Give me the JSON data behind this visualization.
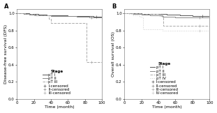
{
  "panel_a": {
    "title": "A",
    "ylabel": "Disease-free survival (DFS)",
    "xlabel": "Time (month)",
    "xlim": [
      0,
      100
    ],
    "ylim": [
      0,
      1.05
    ],
    "yticks": [
      0,
      0.2,
      0.4,
      0.6,
      0.8,
      1.0
    ],
    "xticks": [
      0,
      20,
      40,
      60,
      80,
      100
    ],
    "curves": [
      {
        "label": "pT I",
        "color": "#555555",
        "linestyle": "solid",
        "linewidth": 0.7,
        "x": [
          0,
          15,
          25,
          35,
          50,
          60,
          75,
          90,
          100
        ],
        "y": [
          1.0,
          0.99,
          0.985,
          0.98,
          0.975,
          0.97,
          0.965,
          0.96,
          0.96
        ]
      },
      {
        "label": "pT II",
        "color": "#888888",
        "linestyle": "solid",
        "linewidth": 0.7,
        "x": [
          0,
          8,
          15,
          22,
          30,
          40,
          55,
          70,
          85,
          100
        ],
        "y": [
          1.0,
          0.99,
          0.985,
          0.98,
          0.975,
          0.97,
          0.965,
          0.96,
          0.955,
          0.955
        ]
      },
      {
        "label": "pT III",
        "color": "#aaaaaa",
        "linestyle": "dashed",
        "linewidth": 0.7,
        "x": [
          0,
          5,
          10,
          20,
          38,
          38,
          40,
          80,
          82,
          82,
          100
        ],
        "y": [
          1.0,
          1.0,
          0.99,
          0.975,
          0.935,
          0.935,
          0.89,
          0.89,
          0.89,
          0.43,
          0.43
        ]
      }
    ],
    "censored": [
      {
        "label": "I-censored",
        "color": "#555555",
        "x": [
          93
        ],
        "y": [
          0.962
        ]
      },
      {
        "label": "II-censored",
        "color": "#888888",
        "x": [
          88
        ],
        "y": [
          0.955
        ]
      },
      {
        "label": "III-censored",
        "color": "#aaaaaa",
        "x": [
          88
        ],
        "y": [
          0.43
        ]
      }
    ]
  },
  "panel_b": {
    "title": "B",
    "ylabel": "Overall survival (OS)",
    "xlabel": "Time (month)",
    "xlim": [
      0,
      100
    ],
    "ylim": [
      0,
      1.05
    ],
    "yticks": [
      0,
      0.2,
      0.4,
      0.6,
      0.8,
      1.0
    ],
    "xticks": [
      0,
      20,
      40,
      60,
      80,
      100
    ],
    "curves": [
      {
        "label": "pT I",
        "color": "#555555",
        "linestyle": "solid",
        "linewidth": 0.7,
        "x": [
          0,
          10,
          20,
          35,
          50,
          65,
          80,
          95,
          100
        ],
        "y": [
          1.0,
          1.0,
          0.995,
          0.99,
          0.985,
          0.975,
          0.97,
          0.965,
          0.965
        ]
      },
      {
        "label": "pT II",
        "color": "#888888",
        "linestyle": "solid",
        "linewidth": 0.7,
        "x": [
          0,
          5,
          10,
          20,
          30,
          42,
          45,
          45,
          60,
          75,
          90,
          100
        ],
        "y": [
          1.0,
          1.0,
          0.99,
          0.985,
          0.98,
          0.975,
          0.975,
          0.96,
          0.955,
          0.952,
          0.95,
          0.95
        ]
      },
      {
        "label": "pT III",
        "color": "#aaaaaa",
        "linestyle": "dashed",
        "linewidth": 0.7,
        "x": [
          0,
          5,
          10,
          20,
          42,
          46,
          46,
          60,
          75,
          90,
          100
        ],
        "y": [
          1.0,
          1.0,
          1.0,
          0.99,
          0.97,
          0.97,
          0.855,
          0.855,
          0.855,
          0.855,
          0.855
        ]
      },
      {
        "label": "pT IV",
        "color": "#cccccc",
        "linestyle": "dotted",
        "linewidth": 0.7,
        "x": [
          0,
          5,
          10,
          18,
          22,
          22,
          42,
          45,
          45,
          80,
          90,
          100
        ],
        "y": [
          1.0,
          0.99,
          0.975,
          0.96,
          0.955,
          0.81,
          0.81,
          0.81,
          0.795,
          0.795,
          0.795,
          0.795
        ]
      }
    ],
    "censored": [
      {
        "label": "I-censored",
        "color": "#555555",
        "x": [
          92
        ],
        "y": [
          0.965
        ]
      },
      {
        "label": "II-censored",
        "color": "#888888",
        "x": [
          88
        ],
        "y": [
          0.952
        ]
      },
      {
        "label": "III-censored",
        "color": "#aaaaaa",
        "x": [
          88
        ],
        "y": [
          0.855
        ]
      },
      {
        "label": "IV-censored",
        "color": "#cccccc",
        "x": [
          88
        ],
        "y": [
          0.795
        ]
      }
    ]
  },
  "background_color": "#ffffff",
  "fontsize_label": 4.5,
  "fontsize_tick": 4,
  "fontsize_legend": 4,
  "fontsize_title": 6
}
